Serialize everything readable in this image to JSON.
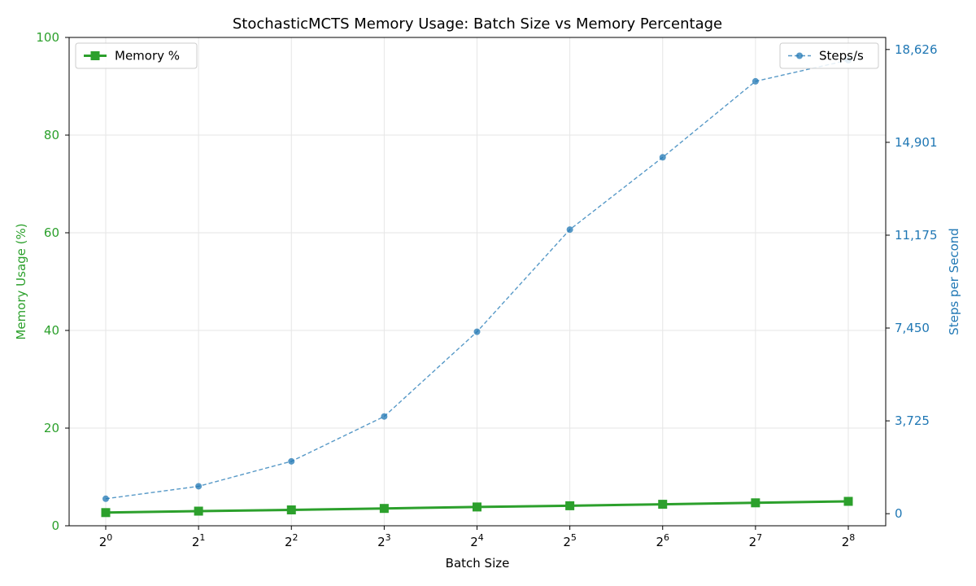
{
  "chart_data": {
    "type": "line",
    "title": "StochasticMCTS Memory Usage: Batch Size vs Memory Percentage",
    "xlabel": "Batch Size",
    "x_scale": "log2",
    "x_values": [
      1,
      2,
      4,
      8,
      16,
      32,
      64,
      128,
      256
    ],
    "x_tick_labels": [
      {
        "base": "2",
        "exp": "0"
      },
      {
        "base": "2",
        "exp": "1"
      },
      {
        "base": "2",
        "exp": "2"
      },
      {
        "base": "2",
        "exp": "3"
      },
      {
        "base": "2",
        "exp": "4"
      },
      {
        "base": "2",
        "exp": "5"
      },
      {
        "base": "2",
        "exp": "6"
      },
      {
        "base": "2",
        "exp": "7"
      },
      {
        "base": "2",
        "exp": "8"
      }
    ],
    "left_axis": {
      "label": "Memory Usage (%)",
      "ylim": [
        0,
        100
      ],
      "ticks": [
        0,
        20,
        40,
        60,
        80,
        100
      ],
      "tick_labels": [
        "0",
        "20",
        "40",
        "60",
        "80",
        "100"
      ],
      "color": "#2ca02c"
    },
    "right_axis": {
      "label": "Steps per Second",
      "ylim": [
        -485,
        19110
      ],
      "ticks": [
        0,
        3725,
        7450,
        11175,
        14901,
        18626
      ],
      "tick_labels": [
        "0",
        "3,725",
        "7,450",
        "11,175",
        "14,901",
        "18,626"
      ],
      "color": "#1f77b4"
    },
    "grid": true,
    "series": [
      {
        "name": "Memory %",
        "axis": "left",
        "color": "#2ca02c",
        "marker": "square",
        "line_style": "solid",
        "values": [
          2.7,
          3.0,
          3.25,
          3.55,
          3.85,
          4.1,
          4.4,
          4.7,
          5.0
        ]
      },
      {
        "name": "Steps/s",
        "axis": "right",
        "color": "#1f77b4",
        "marker": "circle",
        "line_style": "dashed",
        "values": [
          600,
          1100,
          2100,
          3900,
          7300,
          11400,
          14300,
          17350,
          18200
        ]
      }
    ],
    "legends": [
      {
        "series": "Memory %",
        "position": "upper left"
      },
      {
        "series": "Steps/s",
        "position": "upper right"
      }
    ]
  }
}
